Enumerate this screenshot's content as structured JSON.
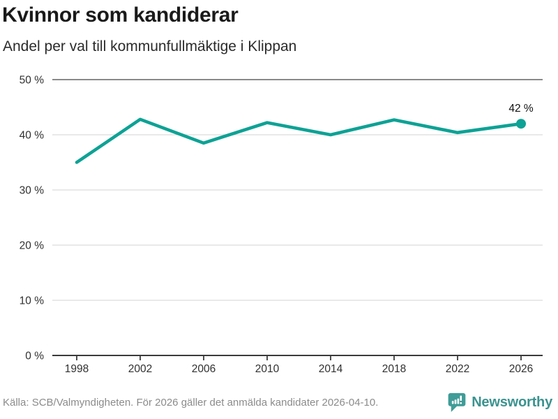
{
  "chart_data": {
    "type": "line",
    "title": "Kvinnor som kandiderar",
    "subtitle": "Andel per val till kommunfullmäktige i Klippan",
    "x": [
      1998,
      2002,
      2006,
      2010,
      2014,
      2018,
      2022,
      2026
    ],
    "xtick_labels": [
      "1998",
      "2002",
      "2006",
      "2010",
      "2014",
      "2018",
      "2022",
      "2026"
    ],
    "values": [
      35,
      42.8,
      38.5,
      42.2,
      40,
      42.7,
      40.4,
      42
    ],
    "ylim": [
      0,
      50
    ],
    "ytick_values": [
      0,
      10,
      20,
      30,
      40,
      50
    ],
    "ytick_labels": [
      "0 %",
      "10 %",
      "20 %",
      "30 %",
      "40 %",
      "50 %"
    ],
    "end_point_label": "42 %",
    "grid": "horizontal",
    "legend": "none",
    "line_color": "#0da295"
  },
  "footer": {
    "source": "Källa: SCB/Valmyndigheten. För 2026 gäller det anmälda kandidater 2026-04-10.",
    "brand": "Newsworthy"
  },
  "colors": {
    "line": "#0da295",
    "brand_teal": "#3a938f",
    "grid_light": "#dcdcdc",
    "grid_dark": "#8a8a8a",
    "axis": "#3a3a3a"
  }
}
